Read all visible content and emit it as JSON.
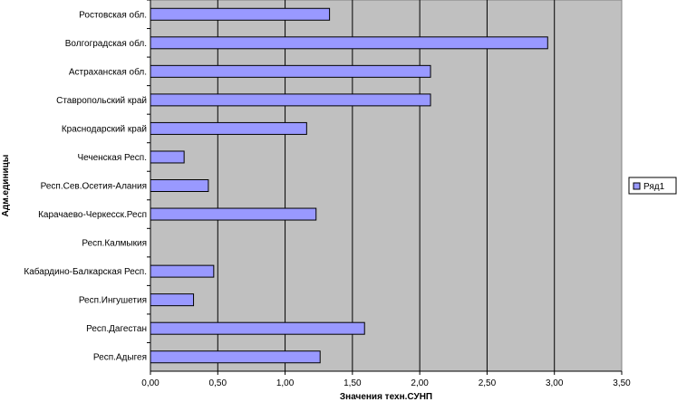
{
  "chart_data": {
    "type": "bar",
    "orientation": "horizontal",
    "categories": [
      "Ростовская обл.",
      "Волгоградская обл.",
      "Астраханская обл.",
      "Ставропольский край",
      "Краснодарский край",
      "Чеченская Респ.",
      "Респ.Сев.Осетия-Алания",
      "Карачаево-Черкесск.Респ",
      "Респ.Калмыкия",
      "Кабардино-Балкарская Респ.",
      "Респ.Ингушетия",
      "Респ.Дагестан",
      "Респ.Адыгея"
    ],
    "series": [
      {
        "name": "Ряд1",
        "color": "#9999ff",
        "values": [
          1.33,
          2.95,
          2.08,
          2.08,
          1.16,
          0.25,
          0.43,
          1.23,
          0,
          0.47,
          0.32,
          1.59,
          1.26
        ]
      }
    ],
    "xlabel": "Значения техн.СУНП",
    "ylabel": "Адм.единицы",
    "xlim": [
      0,
      3.5
    ],
    "xticks": [
      0,
      0.5,
      1.0,
      1.5,
      2.0,
      2.5,
      3.0,
      3.5
    ],
    "xtick_labels": [
      "0,00",
      "0,50",
      "1,00",
      "1,50",
      "2,00",
      "2,50",
      "3,00",
      "3,50"
    ],
    "grid": "vertical",
    "legend": "right",
    "plot_background": "#c0c0c0"
  }
}
